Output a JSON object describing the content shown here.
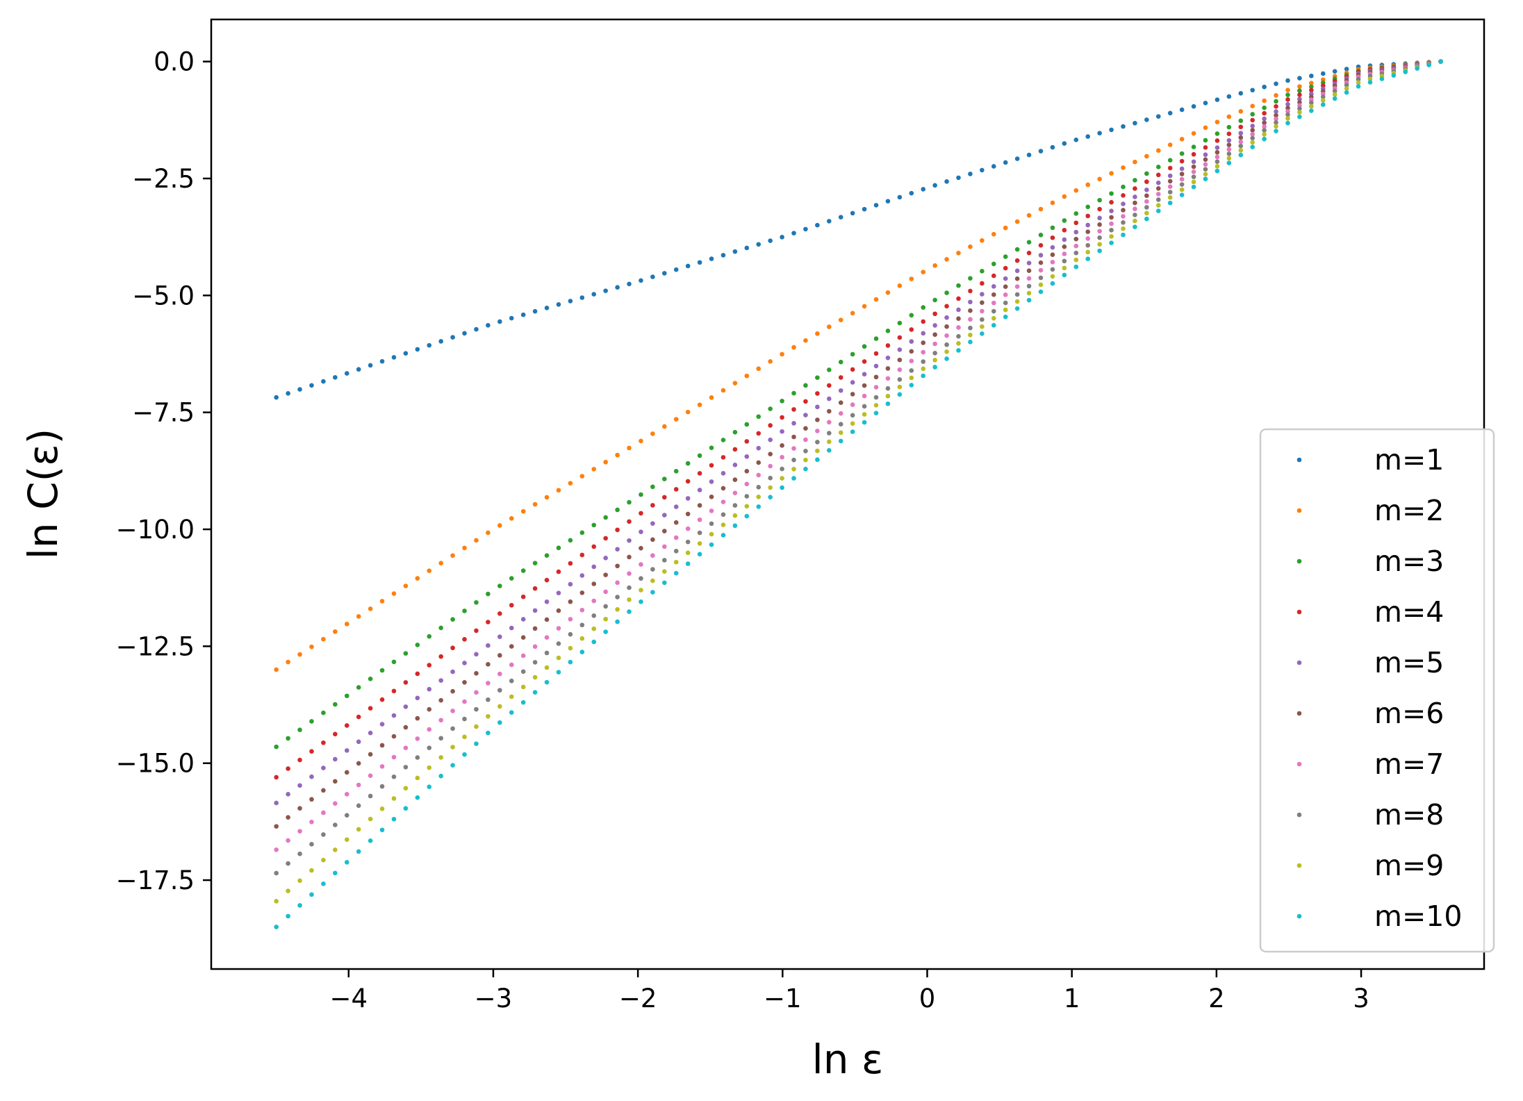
{
  "chart_data": {
    "type": "scatter",
    "title": "",
    "xlabel": "ln ε",
    "ylabel": "ln C(ε)",
    "xlim": [
      -4.95,
      3.85
    ],
    "ylim": [
      -19.4,
      0.9
    ],
    "x_ticks": [
      -4,
      -3,
      -2,
      -1,
      0,
      1,
      2,
      3
    ],
    "x_tick_labels": [
      "−4",
      "−3",
      "−2",
      "−1",
      "0",
      "1",
      "2",
      "3"
    ],
    "y_ticks": [
      0.0,
      -2.5,
      -5.0,
      -7.5,
      -10.0,
      -12.5,
      -15.0,
      -17.5
    ],
    "y_tick_labels": [
      "0.0",
      "−2.5",
      "−5.0",
      "−7.5",
      "−10.0",
      "−12.5",
      "−15.0",
      "−17.5"
    ],
    "grid": false,
    "legend_position": "lower-right",
    "x_range": [
      -4.5,
      3.55
    ],
    "points_per_series": 100,
    "series": [
      {
        "name": "m=1",
        "color": "#1f77b4",
        "knots": [
          [
            -4.5,
            -7.18
          ],
          [
            -3.0,
            -5.6
          ],
          [
            -2.0,
            -4.7
          ],
          [
            -1.0,
            -3.75
          ],
          [
            0.0,
            -2.7
          ],
          [
            1.0,
            -1.7
          ],
          [
            2.0,
            -0.82
          ],
          [
            2.5,
            -0.4
          ],
          [
            3.0,
            -0.1
          ],
          [
            3.55,
            0.0
          ]
        ]
      },
      {
        "name": "m=2",
        "color": "#ff7f0e",
        "knots": [
          [
            -4.5,
            -13.0
          ],
          [
            -3.0,
            -10.0
          ],
          [
            -2.0,
            -8.15
          ],
          [
            -1.0,
            -6.25
          ],
          [
            0.0,
            -4.45
          ],
          [
            1.0,
            -2.8
          ],
          [
            2.0,
            -1.3
          ],
          [
            2.5,
            -0.6
          ],
          [
            3.0,
            -0.15
          ],
          [
            3.55,
            0.0
          ]
        ]
      },
      {
        "name": "m=3",
        "color": "#2ca02c",
        "knots": [
          [
            -4.5,
            -14.65
          ],
          [
            -3.0,
            -11.3
          ],
          [
            -2.0,
            -9.3
          ],
          [
            -1.0,
            -7.25
          ],
          [
            0.0,
            -5.2
          ],
          [
            1.0,
            -3.3
          ],
          [
            2.0,
            -1.55
          ],
          [
            2.5,
            -0.7
          ],
          [
            3.0,
            -0.18
          ],
          [
            3.55,
            0.0
          ]
        ]
      },
      {
        "name": "m=4",
        "color": "#d62728",
        "knots": [
          [
            -4.5,
            -15.3
          ],
          [
            -3.0,
            -11.9
          ],
          [
            -2.0,
            -9.7
          ],
          [
            -1.0,
            -7.6
          ],
          [
            0.0,
            -5.5
          ],
          [
            1.0,
            -3.5
          ],
          [
            2.0,
            -1.7
          ],
          [
            2.5,
            -0.8
          ],
          [
            3.0,
            -0.2
          ],
          [
            3.55,
            0.0
          ]
        ]
      },
      {
        "name": "m=5",
        "color": "#9467bd",
        "knots": [
          [
            -4.5,
            -15.85
          ],
          [
            -3.0,
            -12.4
          ],
          [
            -2.0,
            -10.1
          ],
          [
            -1.0,
            -7.9
          ],
          [
            0.0,
            -5.75
          ],
          [
            1.0,
            -3.7
          ],
          [
            2.0,
            -1.85
          ],
          [
            2.5,
            -0.9
          ],
          [
            3.0,
            -0.23
          ],
          [
            3.55,
            0.0
          ]
        ]
      },
      {
        "name": "m=6",
        "color": "#8c564b",
        "knots": [
          [
            -4.5,
            -16.35
          ],
          [
            -3.0,
            -12.8
          ],
          [
            -2.0,
            -10.45
          ],
          [
            -1.0,
            -8.2
          ],
          [
            0.0,
            -5.95
          ],
          [
            1.0,
            -3.85
          ],
          [
            2.0,
            -1.95
          ],
          [
            2.5,
            -0.98
          ],
          [
            3.0,
            -0.26
          ],
          [
            3.55,
            0.0
          ]
        ]
      },
      {
        "name": "m=7",
        "color": "#e377c2",
        "knots": [
          [
            -4.5,
            -16.85
          ],
          [
            -3.0,
            -13.2
          ],
          [
            -2.0,
            -10.8
          ],
          [
            -1.0,
            -8.45
          ],
          [
            0.0,
            -6.15
          ],
          [
            1.0,
            -4.0
          ],
          [
            2.0,
            -2.05
          ],
          [
            2.5,
            -1.05
          ],
          [
            3.0,
            -0.3
          ],
          [
            3.55,
            0.0
          ]
        ]
      },
      {
        "name": "m=8",
        "color": "#7f7f7f",
        "knots": [
          [
            -4.5,
            -17.35
          ],
          [
            -3.0,
            -13.55
          ],
          [
            -2.0,
            -11.1
          ],
          [
            -1.0,
            -8.7
          ],
          [
            0.0,
            -6.35
          ],
          [
            1.0,
            -4.15
          ],
          [
            2.0,
            -2.15
          ],
          [
            2.5,
            -1.12
          ],
          [
            3.0,
            -0.35
          ],
          [
            3.55,
            0.0
          ]
        ]
      },
      {
        "name": "m=9",
        "color": "#bcbd22",
        "knots": [
          [
            -4.5,
            -17.95
          ],
          [
            -3.0,
            -13.9
          ],
          [
            -2.0,
            -11.35
          ],
          [
            -1.0,
            -8.9
          ],
          [
            0.0,
            -6.5
          ],
          [
            1.0,
            -4.3
          ],
          [
            2.0,
            -2.25
          ],
          [
            2.5,
            -1.2
          ],
          [
            3.0,
            -0.42
          ],
          [
            3.55,
            0.0
          ]
        ]
      },
      {
        "name": "m=10",
        "color": "#17becf",
        "knots": [
          [
            -4.5,
            -18.5
          ],
          [
            -3.0,
            -14.25
          ],
          [
            -2.0,
            -11.6
          ],
          [
            -1.0,
            -9.1
          ],
          [
            0.0,
            -6.65
          ],
          [
            1.0,
            -4.45
          ],
          [
            2.0,
            -2.35
          ],
          [
            2.5,
            -1.3
          ],
          [
            3.0,
            -0.5
          ],
          [
            3.55,
            0.0
          ]
        ]
      }
    ]
  }
}
